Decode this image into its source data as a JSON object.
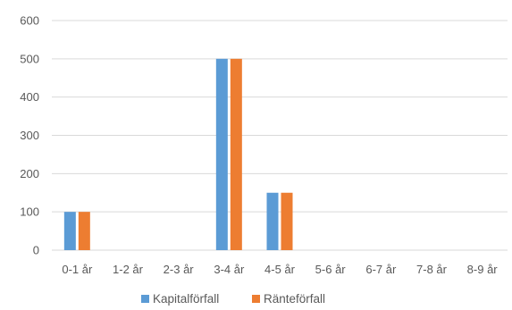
{
  "chart_data": {
    "type": "bar",
    "categories": [
      "0-1 år",
      "1-2 år",
      "2-3 år",
      "3-4 år",
      "4-5 år",
      "5-6 år",
      "6-7 år",
      "7-8 år",
      "8-9 år"
    ],
    "series": [
      {
        "name": "Kapitalförfall",
        "color": "#5B9BD5",
        "values": [
          100,
          0,
          0,
          500,
          150,
          0,
          0,
          0,
          0
        ]
      },
      {
        "name": "Ränteförfall",
        "color": "#ED7D31",
        "values": [
          100,
          0,
          0,
          500,
          150,
          0,
          0,
          0,
          0
        ]
      }
    ],
    "ylim": [
      0,
      600
    ],
    "yticks": [
      0,
      100,
      200,
      300,
      400,
      500,
      600
    ],
    "grid": true,
    "legend_position": "bottom"
  }
}
